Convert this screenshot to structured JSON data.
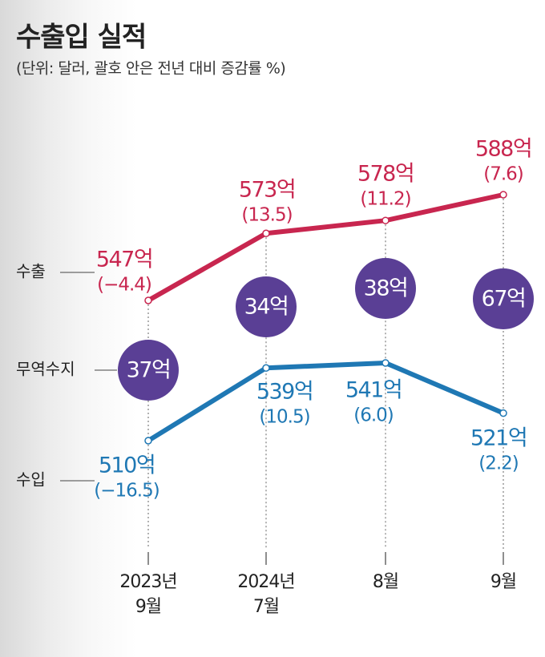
{
  "chart_data": {
    "type": "line",
    "title": "수출입 실적",
    "subtitle": "(단위: 달러, 괄호 안은 전년 대비 증감률 %)",
    "categories": [
      "2023년\n9월",
      "2024년\n7월",
      "8월",
      "9월"
    ],
    "series": [
      {
        "name": "수출",
        "color": "#c8264f",
        "values": [
          547,
          573,
          578,
          588
        ],
        "value_labels": [
          "547억",
          "573억",
          "578억",
          "588억"
        ],
        "changes": [
          "(−4.4)",
          "(13.5)",
          "(11.2)",
          "(7.6)"
        ]
      },
      {
        "name": "수입",
        "color": "#1f78b4",
        "values": [
          510,
          539,
          541,
          521
        ],
        "value_labels": [
          "510억",
          "539억",
          "541억",
          "521억"
        ],
        "changes": [
          "(−16.5)",
          "(10.5)",
          "(6.0)",
          "(2.2)"
        ]
      }
    ],
    "balance": {
      "name": "무역수지",
      "color": "#5a3f95",
      "values": [
        37,
        34,
        38,
        67
      ],
      "value_labels": [
        "37억",
        "34억",
        "38억",
        "67억"
      ]
    }
  }
}
